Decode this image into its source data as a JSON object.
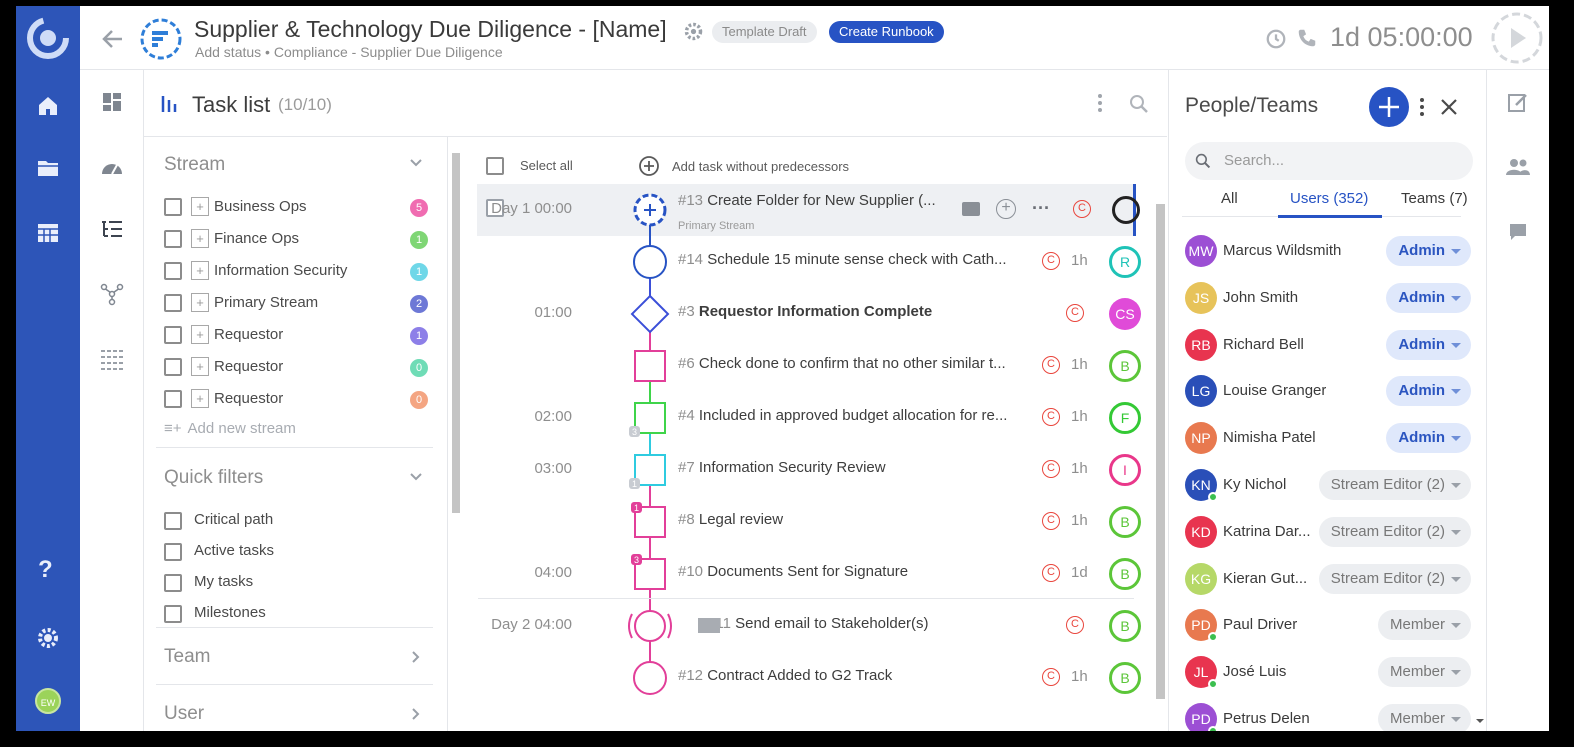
{
  "header": {
    "title": "Supplier & Technology Due Diligence - [Name]",
    "subtitle": "Add status • Compliance - Supplier Due Diligence",
    "chip_draft": "Template Draft",
    "chip_runbook": "Create Runbook",
    "timer": "1d 05:00:00"
  },
  "rail": {
    "avatar_initials": "EW"
  },
  "tasklist": {
    "title": "Task list",
    "count": "(10/10)",
    "select_all": "Select all",
    "add_task": "Add task without predecessors"
  },
  "filters": {
    "stream_title": "Stream",
    "streams": [
      {
        "label": "Business Ops",
        "count": "5",
        "color": "#f06cb1"
      },
      {
        "label": "Finance Ops",
        "count": "1",
        "color": "#7fd675"
      },
      {
        "label": "Information Security",
        "count": "1",
        "color": "#6fd7e8"
      },
      {
        "label": "Primary Stream",
        "count": "2",
        "color": "#6d78d6"
      },
      {
        "label": "Requestor",
        "count": "1",
        "color": "#8d7fe8"
      },
      {
        "label": "Requestor",
        "count": "0",
        "color": "#6fdcb6"
      },
      {
        "label": "Requestor",
        "count": "0",
        "color": "#f4a582"
      }
    ],
    "add_stream": "Add new stream",
    "quick_title": "Quick filters",
    "quick": [
      "Critical path",
      "Active tasks",
      "My tasks",
      "Milestones"
    ],
    "team_title": "Team",
    "user_title": "User"
  },
  "tasks": [
    {
      "time": "Day 1 00:00",
      "num": "#13",
      "text": "Create Folder for New Supplier (...",
      "sub": "Primary Stream",
      "dur": "",
      "avatar": "",
      "av_color": "#333"
    },
    {
      "time": "",
      "num": "#14",
      "text": "Schedule 15 minute sense check with Cath...",
      "dur": "1h",
      "avatar": "R",
      "av_color": "#1fc3b7"
    },
    {
      "time": "01:00",
      "num": "#3",
      "text": "Requestor Information Complete",
      "dur": "",
      "avatar": "CS",
      "av_color": "#e04bd8"
    },
    {
      "time": "",
      "num": "#6",
      "text": "Check done to confirm that no other similar t...",
      "dur": "1h",
      "avatar": "B",
      "av_color": "#5cc639"
    },
    {
      "time": "02:00",
      "num": "#4",
      "text": "Included in approved budget allocation for re...",
      "dur": "1h",
      "avatar": "F",
      "av_color": "#34c935"
    },
    {
      "time": "03:00",
      "num": "#7",
      "text": "Information Security Review",
      "dur": "1h",
      "avatar": "I",
      "av_color": "#e9378a"
    },
    {
      "time": "",
      "num": "#8",
      "text": "Legal review",
      "dur": "1h",
      "avatar": "B",
      "av_color": "#5cc639"
    },
    {
      "time": "04:00",
      "num": "#10",
      "text": "Documents Sent for Signature",
      "dur": "1d",
      "avatar": "B",
      "av_color": "#5cc639"
    },
    {
      "time": "Day 2 04:00",
      "num": "#11",
      "text": "Send email to Stakeholder(s)",
      "dur": "",
      "avatar": "B",
      "av_color": "#5cc639"
    },
    {
      "time": "",
      "num": "#12",
      "text": "Contract Added to G2 Track",
      "dur": "1h",
      "avatar": "B",
      "av_color": "#5cc639"
    }
  ],
  "people": {
    "title": "People/Teams",
    "search_placeholder": "Search...",
    "tabs": [
      "All",
      "Users (352)",
      "Teams (7)"
    ],
    "users": [
      {
        "initials": "MW",
        "name": "Marcus Wildsmith",
        "role": "Admin",
        "color": "#9c4fd4",
        "online": false
      },
      {
        "initials": "JS",
        "name": "John Smith",
        "role": "Admin",
        "color": "#e7c35a",
        "online": false
      },
      {
        "initials": "RB",
        "name": "Richard Bell",
        "role": "Admin",
        "color": "#e8344f",
        "online": false
      },
      {
        "initials": "LG",
        "name": "Louise Granger",
        "role": "Admin",
        "color": "#2a4fb8",
        "online": false
      },
      {
        "initials": "NP",
        "name": "Nimisha Patel",
        "role": "Admin",
        "color": "#e8794f",
        "online": false
      },
      {
        "initials": "KN",
        "name": "Ky Nichol",
        "role": "Stream Editor (2)",
        "color": "#2a4fb8",
        "online": true
      },
      {
        "initials": "KD",
        "name": "Katrina Dar...",
        "role": "Stream Editor (2)",
        "color": "#e8344f",
        "online": false
      },
      {
        "initials": "KG",
        "name": "Kieran Gut...",
        "role": "Stream Editor (2)",
        "color": "#b6d868",
        "online": false
      },
      {
        "initials": "PD",
        "name": "Paul Driver",
        "role": "Member",
        "color": "#e8794f",
        "online": true
      },
      {
        "initials": "JL",
        "name": "José Luis",
        "role": "Member",
        "color": "#e8344f",
        "online": true
      },
      {
        "initials": "PD",
        "name": "Petrus Delen",
        "role": "Member",
        "color": "#9c4fd4",
        "online": true
      }
    ]
  }
}
